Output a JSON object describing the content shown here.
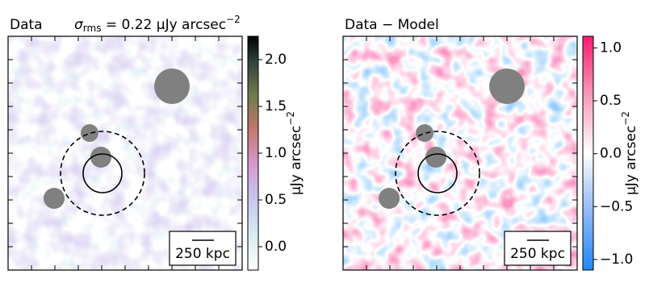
{
  "chart_data": [
    {
      "type": "image",
      "title": "Data",
      "annotation": {
        "symbol": "σ",
        "subscript": "rms",
        "text": " = 0.22 μJy arcsec",
        "superscript": "−2"
      },
      "scale_bar_label": "250 kpc",
      "colorbar_label": "μJy arcsec",
      "colorbar_label_superscript": "−2",
      "clim": [
        -0.25,
        2.25
      ],
      "cticks": [
        {
          "value": 0,
          "label": "0.0"
        },
        {
          "value": 0.5,
          "label": "0.5"
        },
        {
          "value": 1,
          "label": "1.0"
        },
        {
          "value": 1.5,
          "label": "1.5"
        },
        {
          "value": 2,
          "label": "2.0"
        }
      ]
    },
    {
      "type": "image",
      "title": "Data − Model",
      "scale_bar_label": "250 kpc",
      "colorbar_label": "μJy arcsec",
      "colorbar_label_superscript": "−2",
      "clim": [
        -1.1,
        1.11
      ],
      "cticks": [
        {
          "value": -1,
          "label": "−1.0"
        },
        {
          "value": -0.5,
          "label": "−0.5"
        },
        {
          "value": 0,
          "label": "0.0"
        },
        {
          "value": 0.5,
          "label": "0.5"
        },
        {
          "value": 1,
          "label": "1.0"
        }
      ]
    }
  ]
}
